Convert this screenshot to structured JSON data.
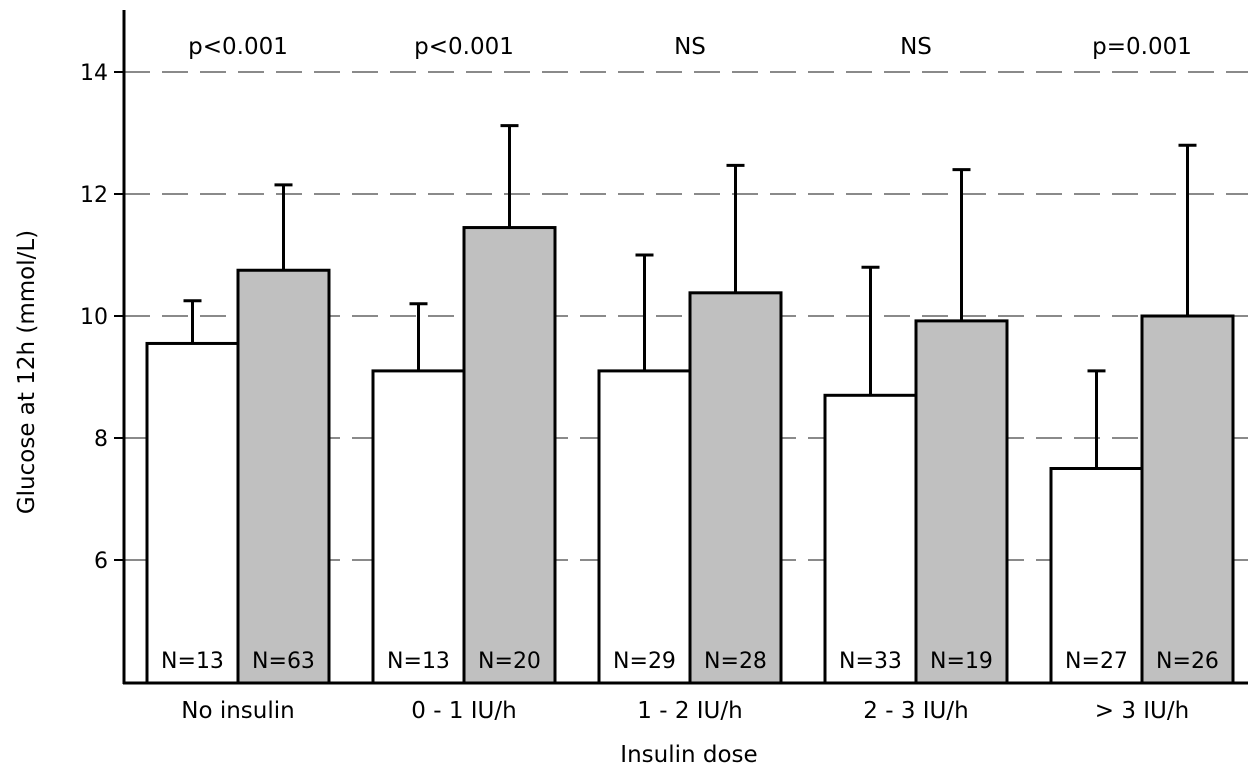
{
  "chart_data": {
    "type": "bar",
    "title": "",
    "xlabel": "Insulin dose",
    "ylabel": "Glucose at 12h (mmol/L)",
    "ylim": [
      4,
      15
    ],
    "yticks": [
      6,
      8,
      10,
      12,
      14
    ],
    "grid": "horizontal dashed",
    "categories": [
      "No insulin",
      "0 - 1 IU/h",
      "1 - 2 IU/h",
      "2 - 3 IU/h",
      "> 3 IU/h"
    ],
    "p_values": [
      "p<0.001",
      "p<0.001",
      "NS",
      "NS",
      "p=0.001"
    ],
    "series": [
      {
        "color": "#ffffff",
        "values": [
          9.55,
          9.1,
          9.1,
          8.7,
          7.5
        ],
        "error_upper": [
          10.25,
          10.2,
          11.0,
          10.8,
          9.1
        ],
        "n_labels": [
          "N=13",
          "N=13",
          "N=29",
          "N=33",
          "N=27"
        ]
      },
      {
        "color": "#c0c0c0",
        "values": [
          10.75,
          11.45,
          10.38,
          9.92,
          10.0
        ],
        "error_upper": [
          12.15,
          13.12,
          12.47,
          12.4,
          12.8
        ],
        "n_labels": [
          "N=63",
          "N=20",
          "N=28",
          "N=19",
          "N=26"
        ]
      }
    ]
  }
}
